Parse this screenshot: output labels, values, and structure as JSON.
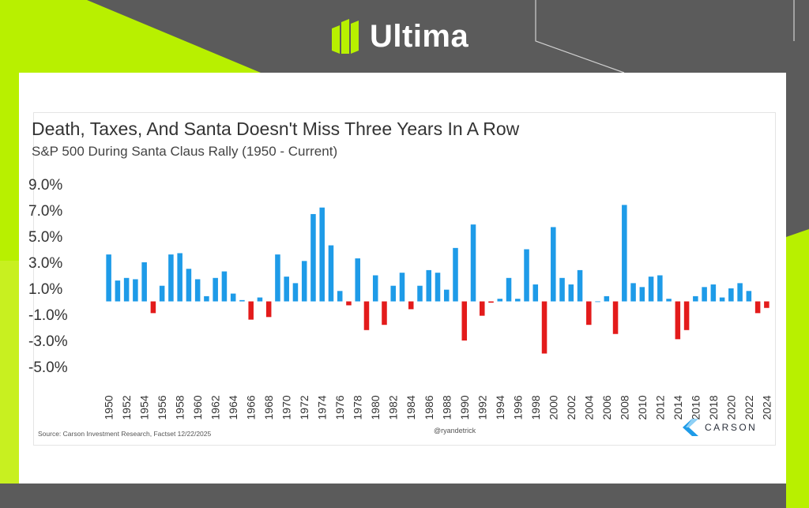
{
  "brand": {
    "name": "Ultima",
    "logo_color": "#b8f000"
  },
  "chart_data": {
    "type": "bar",
    "title": "Death, Taxes, And Santa Doesn't Miss Three Years In A Row",
    "subtitle": "S&P 500 During Santa Claus Rally (1950 - Current)",
    "xlabel": "",
    "ylabel": "",
    "ylim": [
      -5.0,
      9.0
    ],
    "yticks": [
      "9.0%",
      "7.0%",
      "5.0%",
      "3.0%",
      "1.0%",
      "-1.0%",
      "-3.0%",
      "-5.0%"
    ],
    "ytick_values": [
      9,
      7,
      5,
      3,
      1,
      -1,
      -3,
      -5
    ],
    "categories": [
      1950,
      1951,
      1952,
      1953,
      1954,
      1955,
      1956,
      1957,
      1958,
      1959,
      1960,
      1961,
      1962,
      1963,
      1964,
      1965,
      1966,
      1967,
      1968,
      1969,
      1970,
      1971,
      1972,
      1973,
      1974,
      1975,
      1976,
      1977,
      1978,
      1979,
      1980,
      1981,
      1982,
      1983,
      1984,
      1985,
      1986,
      1987,
      1988,
      1989,
      1990,
      1991,
      1992,
      1993,
      1994,
      1995,
      1996,
      1997,
      1998,
      1999,
      2000,
      2001,
      2002,
      2003,
      2004,
      2005,
      2006,
      2007,
      2008,
      2009,
      2010,
      2011,
      2012,
      2013,
      2014,
      2015,
      2016,
      2017,
      2018,
      2019,
      2020,
      2021,
      2022,
      2023,
      2024
    ],
    "xtick_labels": [
      "1950",
      "1952",
      "1954",
      "1956",
      "1958",
      "1960",
      "1962",
      "1964",
      "1966",
      "1968",
      "1970",
      "1972",
      "1974",
      "1976",
      "1978",
      "1980",
      "1982",
      "1984",
      "1986",
      "1988",
      "1990",
      "1992",
      "1994",
      "1996",
      "1998",
      "2000",
      "2002",
      "2004",
      "2006",
      "2008",
      "2010",
      "2012",
      "2014",
      "2016",
      "2018",
      "2020",
      "2022",
      "2024"
    ],
    "values": [
      3.6,
      1.6,
      1.8,
      1.7,
      3.0,
      -0.9,
      1.2,
      3.6,
      3.7,
      2.5,
      1.7,
      0.4,
      1.8,
      2.3,
      0.6,
      0.1,
      -1.4,
      0.3,
      -1.2,
      3.6,
      1.9,
      1.4,
      3.1,
      6.7,
      7.2,
      4.3,
      0.8,
      -0.3,
      3.3,
      -2.2,
      2.0,
      -1.8,
      1.2,
      2.2,
      -0.6,
      1.2,
      2.4,
      2.2,
      0.9,
      4.1,
      -3.0,
      5.9,
      -1.1,
      -0.1,
      0.2,
      1.8,
      0.2,
      4.0,
      1.3,
      -4.0,
      5.7,
      1.8,
      1.3,
      2.4,
      -1.8,
      0.0,
      0.4,
      -2.5,
      7.4,
      1.4,
      1.1,
      1.9,
      2.0,
      0.2,
      -2.9,
      -2.2,
      0.4,
      1.1,
      1.3,
      0.3,
      1.0,
      1.4,
      0.8,
      -0.9,
      -0.5
    ],
    "positive_color": "#1e9be8",
    "negative_color": "#e31b1b",
    "source": "Source: Carson Investment Research, Factset 12/22/2025",
    "handle": "@ryandetrick",
    "logo_text": "CARSON"
  }
}
